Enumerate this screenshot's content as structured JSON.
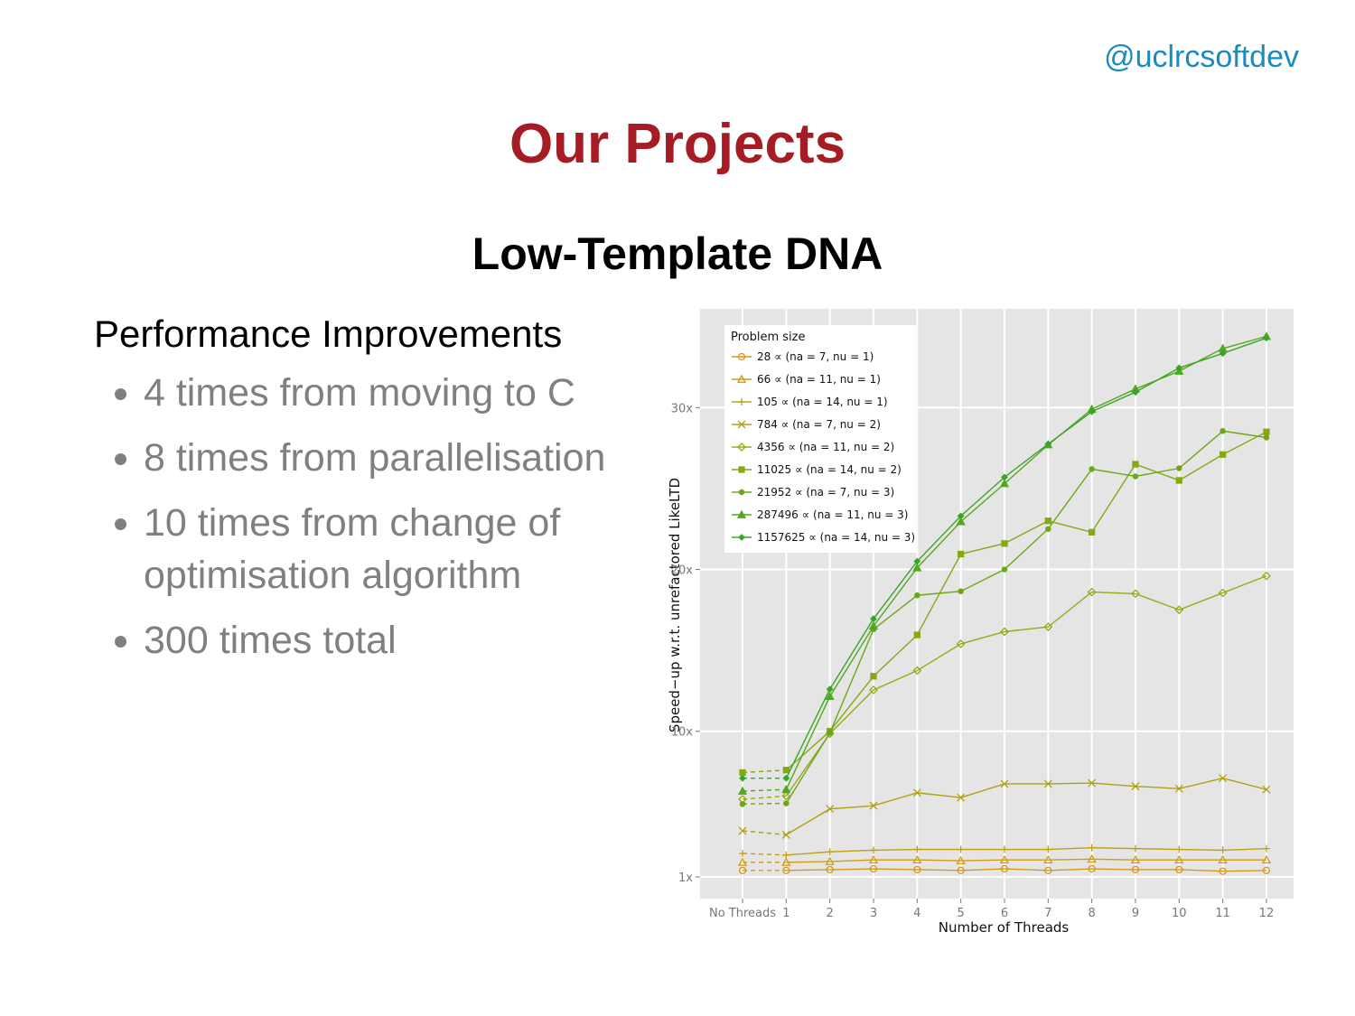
{
  "header": {
    "handle": "@uclrcsoftdev",
    "title": "Our Projects",
    "subtitle": "Low-Template DNA"
  },
  "content": {
    "heading": "Performance Improvements",
    "bullets": [
      "4 times from moving to C",
      "8 times from parallelisation",
      "10 times from change of optimisation algorithm",
      "300 times total"
    ]
  },
  "chart_data": {
    "type": "line",
    "x_label": "Number of Threads",
    "y_label": "Speed−up w.r.t. unrefactored LikeLTD",
    "legend_title": "Problem size",
    "legend": "top-left",
    "grid": true,
    "categories": [
      "No Threads",
      "1",
      "2",
      "3",
      "4",
      "5",
      "6",
      "7",
      "8",
      "9",
      "10",
      "11",
      "12"
    ],
    "ylim": [
      -0.34,
      36.1
    ],
    "yticks": [
      {
        "value": 1,
        "label": "1x"
      },
      {
        "value": 10,
        "label": "10x"
      },
      {
        "value": 20,
        "label": "20x"
      },
      {
        "value": 30,
        "label": "30x"
      }
    ],
    "series": [
      {
        "name": "28 ∝ (na = 7, nu = 1)",
        "color": "#d9961c",
        "marker": "circle",
        "values": [
          1.4,
          1.4,
          1.45,
          1.5,
          1.45,
          1.4,
          1.5,
          1.4,
          1.5,
          1.45,
          1.45,
          1.35,
          1.4
        ]
      },
      {
        "name": "66 ∝ (na = 11, nu = 1)",
        "color": "#d09c14",
        "marker": "triangle",
        "values": [
          1.9,
          1.9,
          1.95,
          2.05,
          2.05,
          2.0,
          2.05,
          2.05,
          2.1,
          2.05,
          2.05,
          2.05,
          2.05
        ]
      },
      {
        "name": "105 ∝ (na = 14, nu = 1)",
        "color": "#c0a012",
        "marker": "plus",
        "values": [
          2.45,
          2.35,
          2.55,
          2.65,
          2.7,
          2.7,
          2.7,
          2.7,
          2.8,
          2.75,
          2.7,
          2.65,
          2.75
        ]
      },
      {
        "name": "784 ∝ (na = 7, nu = 2)",
        "color": "#b0a010",
        "marker": "cross",
        "values": [
          3.85,
          3.6,
          5.2,
          5.4,
          6.2,
          5.9,
          6.75,
          6.75,
          6.8,
          6.6,
          6.45,
          7.1,
          6.4
        ]
      },
      {
        "name": "4356 ∝ (na = 11, nu = 2)",
        "color": "#9aa812",
        "marker": "diamond",
        "values": [
          5.8,
          6.0,
          9.85,
          12.55,
          13.75,
          15.4,
          16.15,
          16.45,
          18.6,
          18.5,
          17.5,
          18.55,
          19.6
        ]
      },
      {
        "name": "11025 ∝ (na = 14, nu = 2)",
        "color": "#86a812",
        "marker": "square",
        "values": [
          7.45,
          7.6,
          10.0,
          13.4,
          15.95,
          20.95,
          21.6,
          23.0,
          22.3,
          26.5,
          25.5,
          27.1,
          28.5
        ]
      },
      {
        "name": "21952 ∝ (na = 7, nu = 3)",
        "color": "#6ca816",
        "marker": "dot",
        "values": [
          5.5,
          5.55,
          9.9,
          16.3,
          18.4,
          18.65,
          20.0,
          22.5,
          26.2,
          25.75,
          26.25,
          28.55,
          28.15
        ]
      },
      {
        "name": "287496 ∝ (na = 11, nu = 3)",
        "color": "#52a81e",
        "marker": "triangle-filled",
        "values": [
          6.3,
          6.4,
          12.15,
          16.5,
          20.1,
          22.95,
          25.3,
          27.7,
          29.9,
          31.15,
          32.25,
          33.65,
          34.4
        ]
      },
      {
        "name": "1157625 ∝ (na = 14, nu = 3)",
        "color": "#38a626",
        "marker": "diamond-filled",
        "values": [
          7.1,
          7.1,
          12.6,
          16.95,
          20.5,
          23.3,
          25.7,
          27.75,
          29.75,
          30.95,
          32.45,
          33.35,
          34.3
        ]
      }
    ]
  }
}
